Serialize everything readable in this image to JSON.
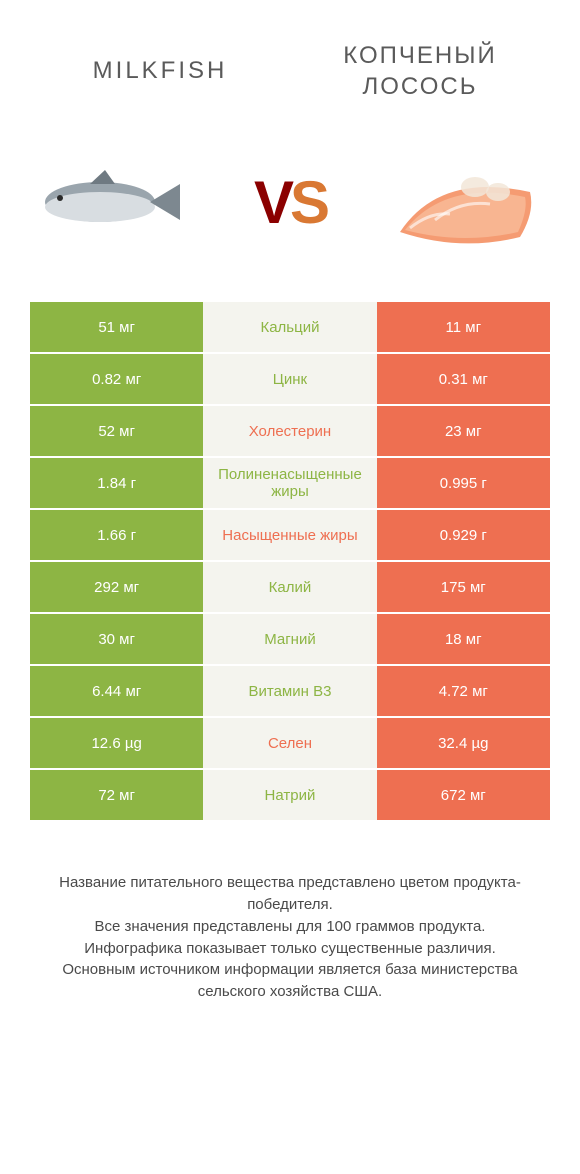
{
  "colors": {
    "green": "#8db544",
    "orange": "#ee6f51",
    "mid_bg": "#f4f4ee",
    "text_grey": "#5a5a5a"
  },
  "header": {
    "left_title": "Milkfish",
    "right_title": "КОПЧЕНЫЙ ЛОСОСЬ",
    "vs_v": "V",
    "vs_s": "S"
  },
  "rows": [
    {
      "left": "51 мг",
      "label": "Кальций",
      "right": "11 мг",
      "winner": "green"
    },
    {
      "left": "0.82 мг",
      "label": "Цинк",
      "right": "0.31 мг",
      "winner": "green"
    },
    {
      "left": "52 мг",
      "label": "Холестерин",
      "right": "23 мг",
      "winner": "orange"
    },
    {
      "left": "1.84 г",
      "label": "Полиненасыщенные жиры",
      "right": "0.995 г",
      "winner": "green"
    },
    {
      "left": "1.66 г",
      "label": "Насыщенные жиры",
      "right": "0.929 г",
      "winner": "orange"
    },
    {
      "left": "292 мг",
      "label": "Калий",
      "right": "175 мг",
      "winner": "green"
    },
    {
      "left": "30 мг",
      "label": "Магний",
      "right": "18 мг",
      "winner": "green"
    },
    {
      "left": "6.44 мг",
      "label": "Витамин B3",
      "right": "4.72 мг",
      "winner": "green"
    },
    {
      "left": "12.6 µg",
      "label": "Селен",
      "right": "32.4 µg",
      "winner": "orange"
    },
    {
      "left": "72 мг",
      "label": "Натрий",
      "right": "672 мг",
      "winner": "green"
    }
  ],
  "footer": {
    "line1": "Название питательного вещества представлено цветом продукта-победителя.",
    "line2": "Все значения представлены для 100 граммов продукта.",
    "line3": "Инфографика показывает только существенные различия.",
    "line4": "Основным источником информации является база министерства сельского хозяйства США."
  }
}
